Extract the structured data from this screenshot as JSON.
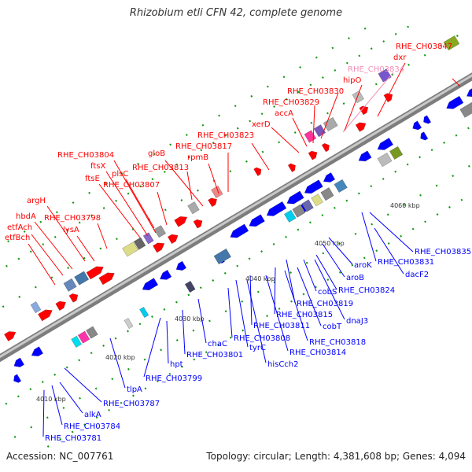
{
  "title": "Rhizobium etli CFN 42, complete genome",
  "footer": {
    "accession": "Accession: NC_007761",
    "stats": "Topology: circular; Length: 4,381,608 bp; Genes: 4,094"
  },
  "colors": {
    "forward_gene": "#ff0000",
    "reverse_gene": "#0000ff",
    "highlight_label": "#f28fb8",
    "backbone": "#999999",
    "tick_mark": "#119911"
  },
  "scale_labels": [
    "4010 kbp",
    "4020 kbp",
    "4030 kbp",
    "4040 kbp",
    "4050 kbp",
    "4060 kbp"
  ],
  "forward_labels": [
    "RHE_CH03847",
    "dxr",
    "RHE_CH03834",
    "hipO",
    "RHE_CH03830",
    "RHE_CH03829",
    "accA",
    "xerD",
    "RHE_CH03823",
    "RHE_CH03817",
    "rpmB",
    "gloB",
    "RHE_CH03813",
    "RHE_CH03804",
    "ftsX",
    "plsC",
    "ftsE",
    "RHE_CH03807",
    "argH",
    "RHE_CH03798",
    "hbdA",
    "lysA",
    "etfAch",
    "etfBch"
  ],
  "reverse_labels": [
    "RHE_CH03835",
    "RHE_CH03831",
    "dacF2",
    "RHE_CH03824",
    "aroK",
    "aroB",
    "cobS",
    "RHE_CH03819",
    "dnaJ3",
    "RHE_CH03815",
    "cobT",
    "RHE_CH03811",
    "RHE_CH03818",
    "RHE_CH03808",
    "RHE_CH03814",
    "tyrC",
    "chaC",
    "hisCch2",
    "RHE_CH03801",
    "hpt",
    "RHE_CH03799",
    "tlpA",
    "RHE_CH03787",
    "alkA",
    "RHE_CH03784",
    "RHE_CH03781"
  ]
}
